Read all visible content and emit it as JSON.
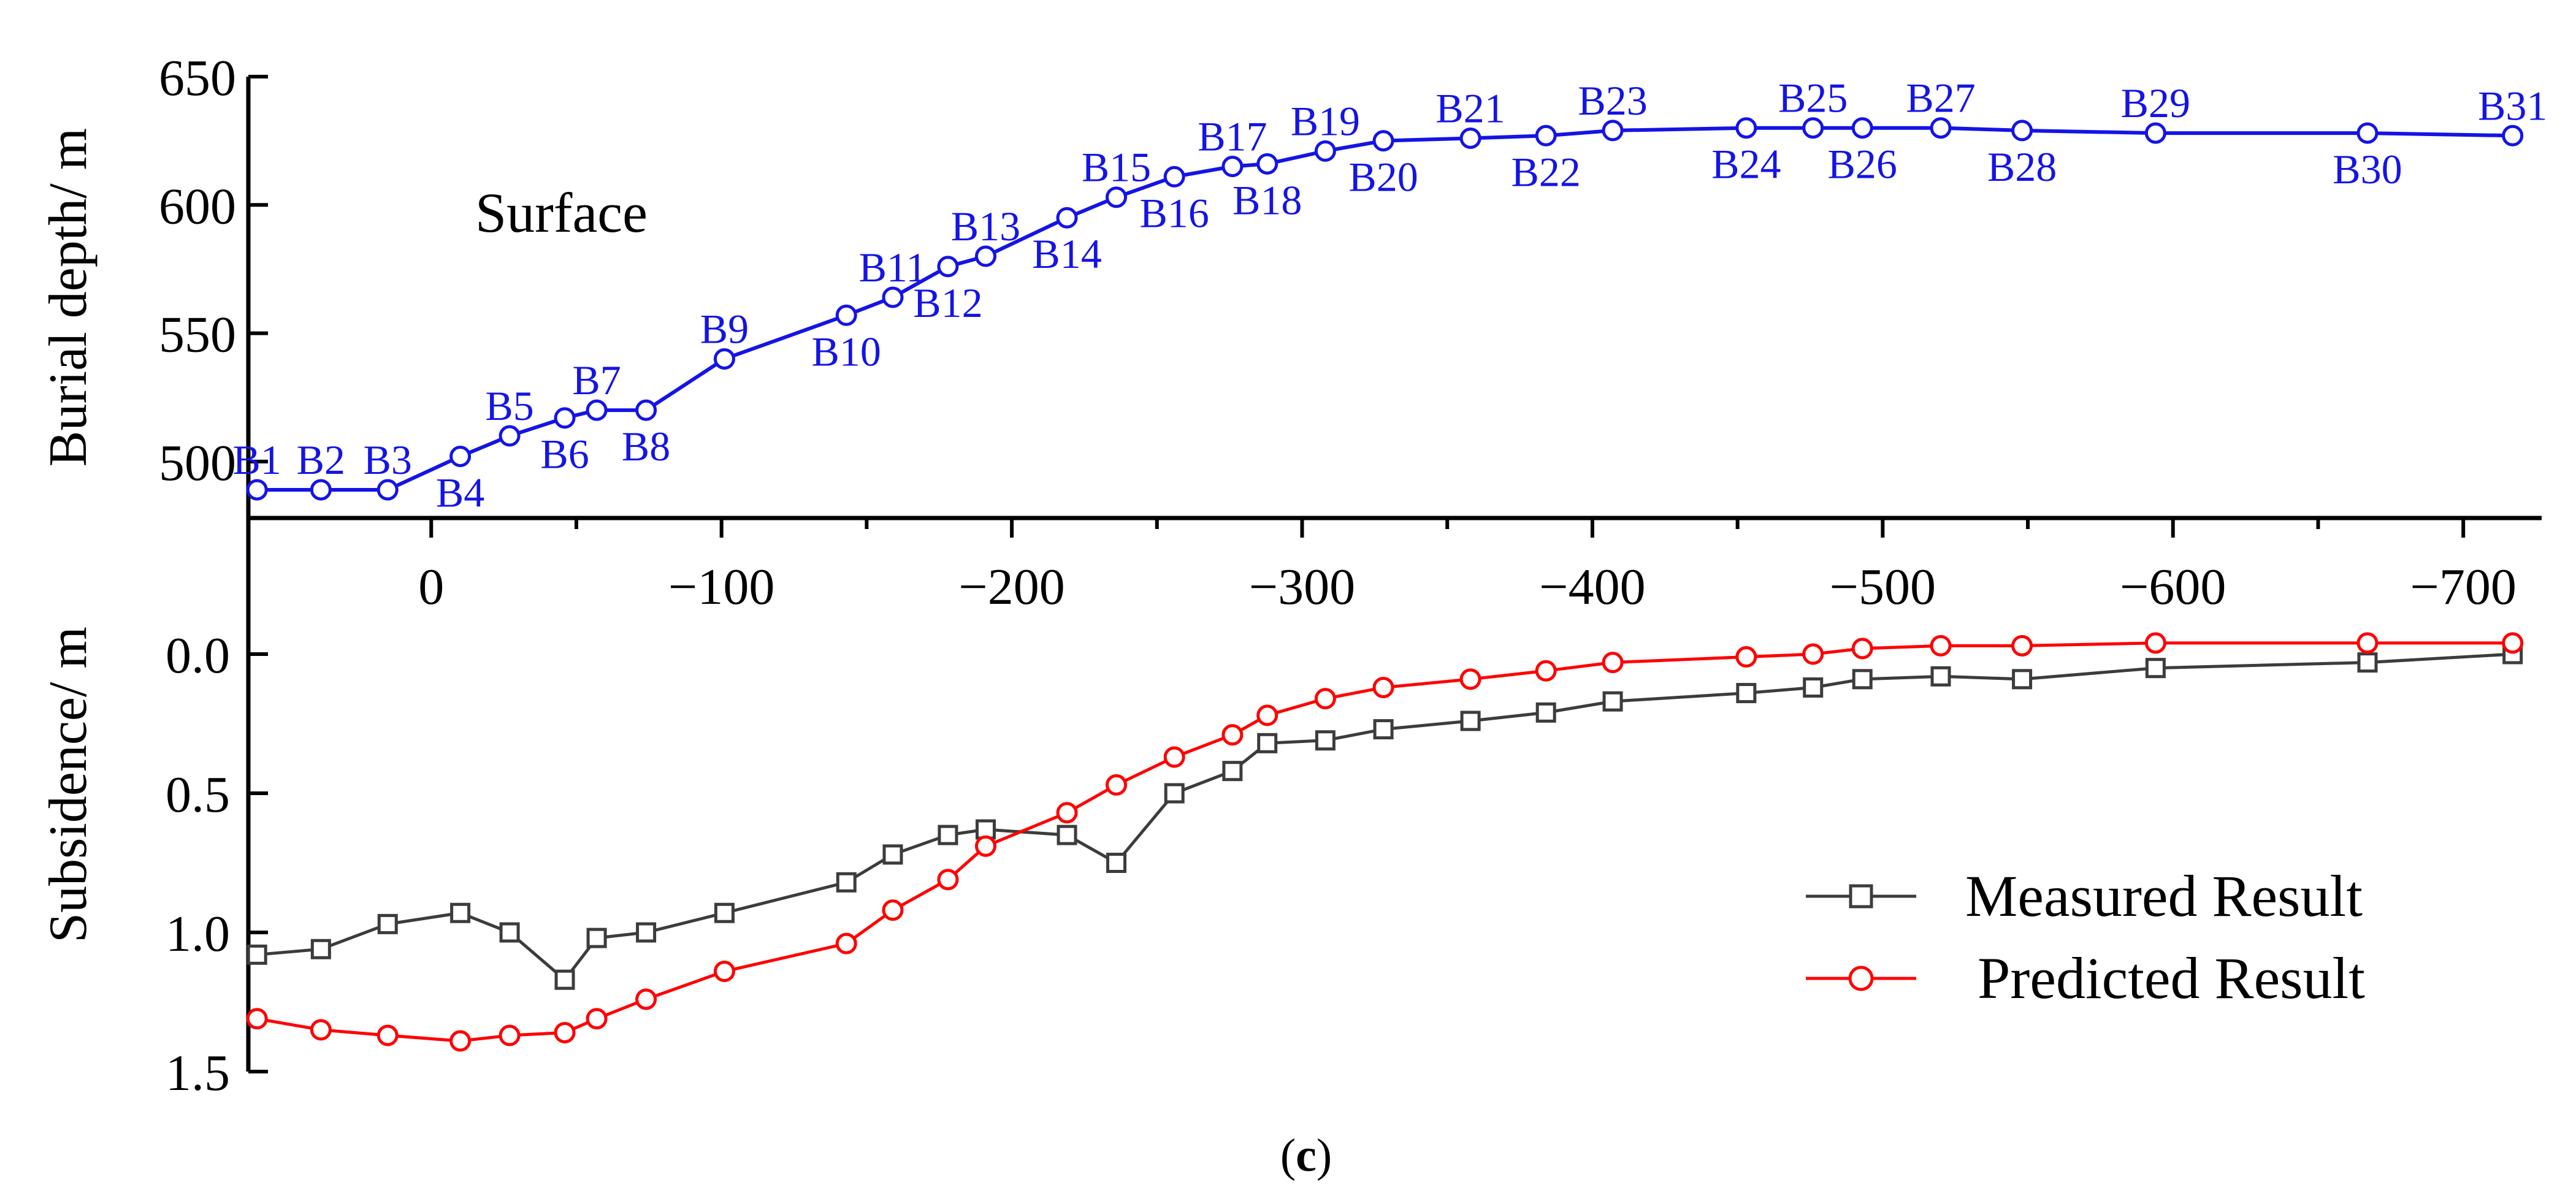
{
  "figure": {
    "caption_prefix": "(",
    "caption_letter": "c",
    "caption_suffix": ")",
    "surface_label": "Surface"
  },
  "colors": {
    "burial": "#1414e6",
    "measured": "#3c3c3c",
    "predicted": "#ff0000",
    "axes": "#000000"
  },
  "chart_data": [
    {
      "type": "line",
      "title": "",
      "xlabel": "",
      "ylabel": "Burial depth/ m",
      "xlim": [
        63,
        -727
      ],
      "ylim": [
        478,
        650
      ],
      "yticks": [
        500,
        550,
        600,
        650
      ],
      "series": [
        {
          "name": "Burial depth",
          "labels": [
            "B1",
            "B2",
            "B3",
            "B4",
            "B5",
            "B6",
            "B7",
            "B8",
            "B9",
            "B10",
            "B11",
            "B12",
            "B13",
            "B14",
            "B15",
            "B16",
            "B17",
            "B18",
            "B19",
            "B20",
            "B21",
            "B22",
            "B23",
            "B24",
            "B25",
            "B26",
            "B27",
            "B28",
            "B29",
            "B30",
            "B31"
          ],
          "label_positions": [
            "above",
            "above",
            "above",
            "below",
            "above",
            "below",
            "above",
            "below",
            "above",
            "below",
            "above",
            "below",
            "above",
            "below",
            "above",
            "below",
            "above",
            "below",
            "above",
            "below",
            "above",
            "below",
            "above",
            "below",
            "above",
            "below",
            "above",
            "below",
            "above",
            "below",
            "above"
          ],
          "x": [
            60,
            38,
            15,
            -10,
            -27,
            -46,
            -57,
            -74,
            -101,
            -143,
            -159,
            -178,
            -191,
            -219,
            -236,
            -256,
            -276,
            -288,
            -308,
            -328,
            -358,
            -384,
            -407,
            -453,
            -476,
            -493,
            -520,
            -548,
            -594,
            -667,
            -717
          ],
          "y": [
            489,
            489,
            489,
            502,
            510,
            517,
            520,
            520,
            540,
            557,
            564,
            576,
            580,
            595,
            603,
            611,
            615,
            616,
            621,
            625,
            626,
            627,
            629,
            630,
            630,
            630,
            630,
            629,
            628,
            628,
            627
          ]
        }
      ]
    },
    {
      "type": "line",
      "title": "",
      "xlabel": "",
      "ylabel": "Subsidence/ m",
      "xlim": [
        63,
        -727
      ],
      "ylim": [
        -0.3,
        1.5
      ],
      "y_inverted": true,
      "xticks": [
        0,
        -100,
        -200,
        -300,
        -400,
        -500,
        -600,
        -700
      ],
      "xtick_labels": [
        "0",
        "−100",
        "−200",
        "−300",
        "−400",
        "−500",
        "−600",
        "−700"
      ],
      "yticks": [
        0.0,
        0.5,
        1.0,
        1.5
      ],
      "ytick_labels": [
        "0.0",
        "0.5",
        "1.0",
        "1.5"
      ],
      "legend_position": "bottom-right",
      "series": [
        {
          "name": "Measured Result",
          "marker": "square",
          "x": [
            60,
            38,
            15,
            -10,
            -27,
            -46,
            -57,
            -74,
            -101,
            -143,
            -159,
            -178,
            -191,
            -219,
            -236,
            -256,
            -276,
            -288,
            -308,
            -328,
            -358,
            -384,
            -407,
            -453,
            -476,
            -493,
            -520,
            -548,
            -594,
            -667,
            -717
          ],
          "y": [
            1.08,
            1.06,
            0.97,
            0.93,
            1.0,
            1.17,
            1.02,
            1.0,
            0.93,
            0.82,
            0.72,
            0.65,
            0.63,
            0.65,
            0.75,
            0.5,
            0.42,
            0.32,
            0.31,
            0.27,
            0.24,
            0.21,
            0.17,
            0.14,
            0.12,
            0.09,
            0.08,
            0.09,
            0.05,
            0.03,
            0.0
          ]
        },
        {
          "name": "Predicted Result",
          "marker": "circle",
          "x": [
            60,
            38,
            15,
            -10,
            -27,
            -46,
            -57,
            -74,
            -101,
            -143,
            -159,
            -178,
            -191,
            -219,
            -236,
            -256,
            -276,
            -288,
            -308,
            -328,
            -358,
            -384,
            -407,
            -453,
            -476,
            -493,
            -520,
            -548,
            -594,
            -667,
            -717
          ],
          "y": [
            1.31,
            1.35,
            1.37,
            1.39,
            1.37,
            1.36,
            1.31,
            1.24,
            1.14,
            1.04,
            0.92,
            0.81,
            0.69,
            0.57,
            0.47,
            0.37,
            0.29,
            0.22,
            0.16,
            0.12,
            0.09,
            0.06,
            0.03,
            0.01,
            0.0,
            -0.02,
            -0.03,
            -0.03,
            -0.04,
            -0.04,
            -0.04
          ]
        }
      ]
    }
  ]
}
